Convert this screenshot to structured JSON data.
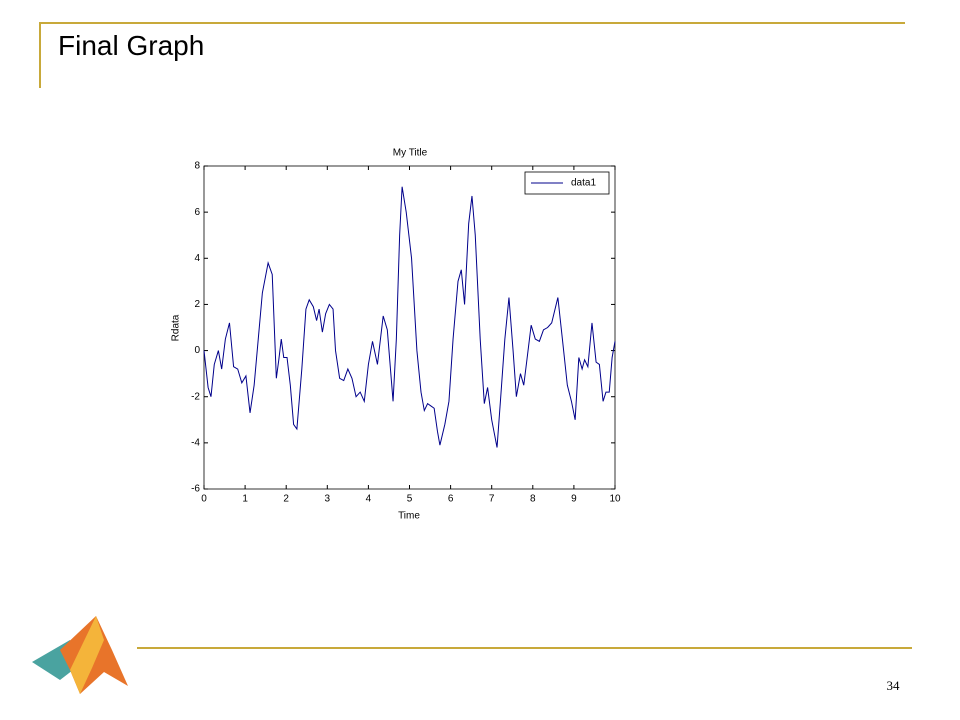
{
  "slide": {
    "title": "Final Graph",
    "page_number": 34
  },
  "chart_data": {
    "type": "line",
    "title": "My Title",
    "x_label": "Time",
    "y_label": "Rdata",
    "x": [
      0,
      0.1,
      0.17,
      0.25,
      0.35,
      0.43,
      0.52,
      0.62,
      0.72,
      0.82,
      0.92,
      1.02,
      1.12,
      1.22,
      1.32,
      1.42,
      1.56,
      1.66,
      1.76,
      1.82,
      1.88,
      1.94,
      2.02,
      2.1,
      2.18,
      2.26,
      2.38,
      2.48,
      2.56,
      2.66,
      2.74,
      2.8,
      2.88,
      2.96,
      3.05,
      3.14,
      3.2,
      3.3,
      3.4,
      3.5,
      3.6,
      3.7,
      3.8,
      3.9,
      4.0,
      4.1,
      4.22,
      4.36,
      4.46,
      4.6,
      4.68,
      4.76,
      4.82,
      4.92,
      5.05,
      5.18,
      5.28,
      5.36,
      5.44,
      5.52,
      5.6,
      5.68,
      5.74,
      5.86,
      5.96,
      6.06,
      6.18,
      6.26,
      6.34,
      6.44,
      6.52,
      6.6,
      6.72,
      6.82,
      6.9,
      7.0,
      7.13,
      7.22,
      7.32,
      7.42,
      7.52,
      7.6,
      7.7,
      7.78,
      7.85,
      7.96,
      8.06,
      8.16,
      8.26,
      8.36,
      8.46,
      8.61,
      8.72,
      8.84,
      8.94,
      9.03,
      9.12,
      9.2,
      9.26,
      9.34,
      9.44,
      9.54,
      9.62,
      9.71,
      9.78,
      9.86,
      9.93,
      10
    ],
    "series": [
      {
        "name": "data1",
        "color": "#00008b",
        "values": [
          0,
          -1.6,
          -2.0,
          -0.6,
          0,
          -0.8,
          0.5,
          1.2,
          -0.7,
          -0.8,
          -1.4,
          -1.1,
          -2.7,
          -1.5,
          0.5,
          2.5,
          3.8,
          3.3,
          -1.2,
          -0.4,
          0.5,
          -0.3,
          -0.3,
          -1.5,
          -3.2,
          -3.4,
          -0.8,
          1.8,
          2.2,
          1.9,
          1.3,
          1.8,
          0.8,
          1.6,
          2.0,
          1.8,
          0,
          -1.2,
          -1.3,
          -0.8,
          -1.2,
          -2.0,
          -1.8,
          -2.2,
          -0.6,
          0.4,
          -0.6,
          1.5,
          0.9,
          -2.2,
          0.5,
          5.0,
          7.1,
          6.0,
          4.0,
          0.0,
          -1.8,
          -2.6,
          -2.3,
          -2.4,
          -2.5,
          -3.5,
          -4.1,
          -3.2,
          -2.2,
          0.5,
          3.0,
          3.5,
          2.0,
          5.5,
          6.7,
          5.0,
          0.5,
          -2.3,
          -1.6,
          -3.0,
          -4.2,
          -2.0,
          0.5,
          2.3,
          0.0,
          -2.0,
          -1.0,
          -1.5,
          -0.5,
          1.1,
          0.5,
          0.4,
          0.9,
          1.0,
          1.2,
          2.3,
          0.5,
          -1.5,
          -2.2,
          -3.0,
          -0.3,
          -0.8,
          -0.4,
          -0.7,
          1.2,
          -0.5,
          -0.6,
          -2.2,
          -1.8,
          -1.8,
          -0.3,
          0.4
        ]
      }
    ],
    "xlim": [
      0,
      10
    ],
    "xticks": [
      0,
      1,
      2,
      3,
      4,
      5,
      6,
      7,
      8,
      9,
      10
    ],
    "ylim": [
      -6,
      8
    ],
    "yticks": [
      -6,
      -4,
      -2,
      0,
      2,
      4,
      6,
      8
    ],
    "legend": "upper right"
  }
}
